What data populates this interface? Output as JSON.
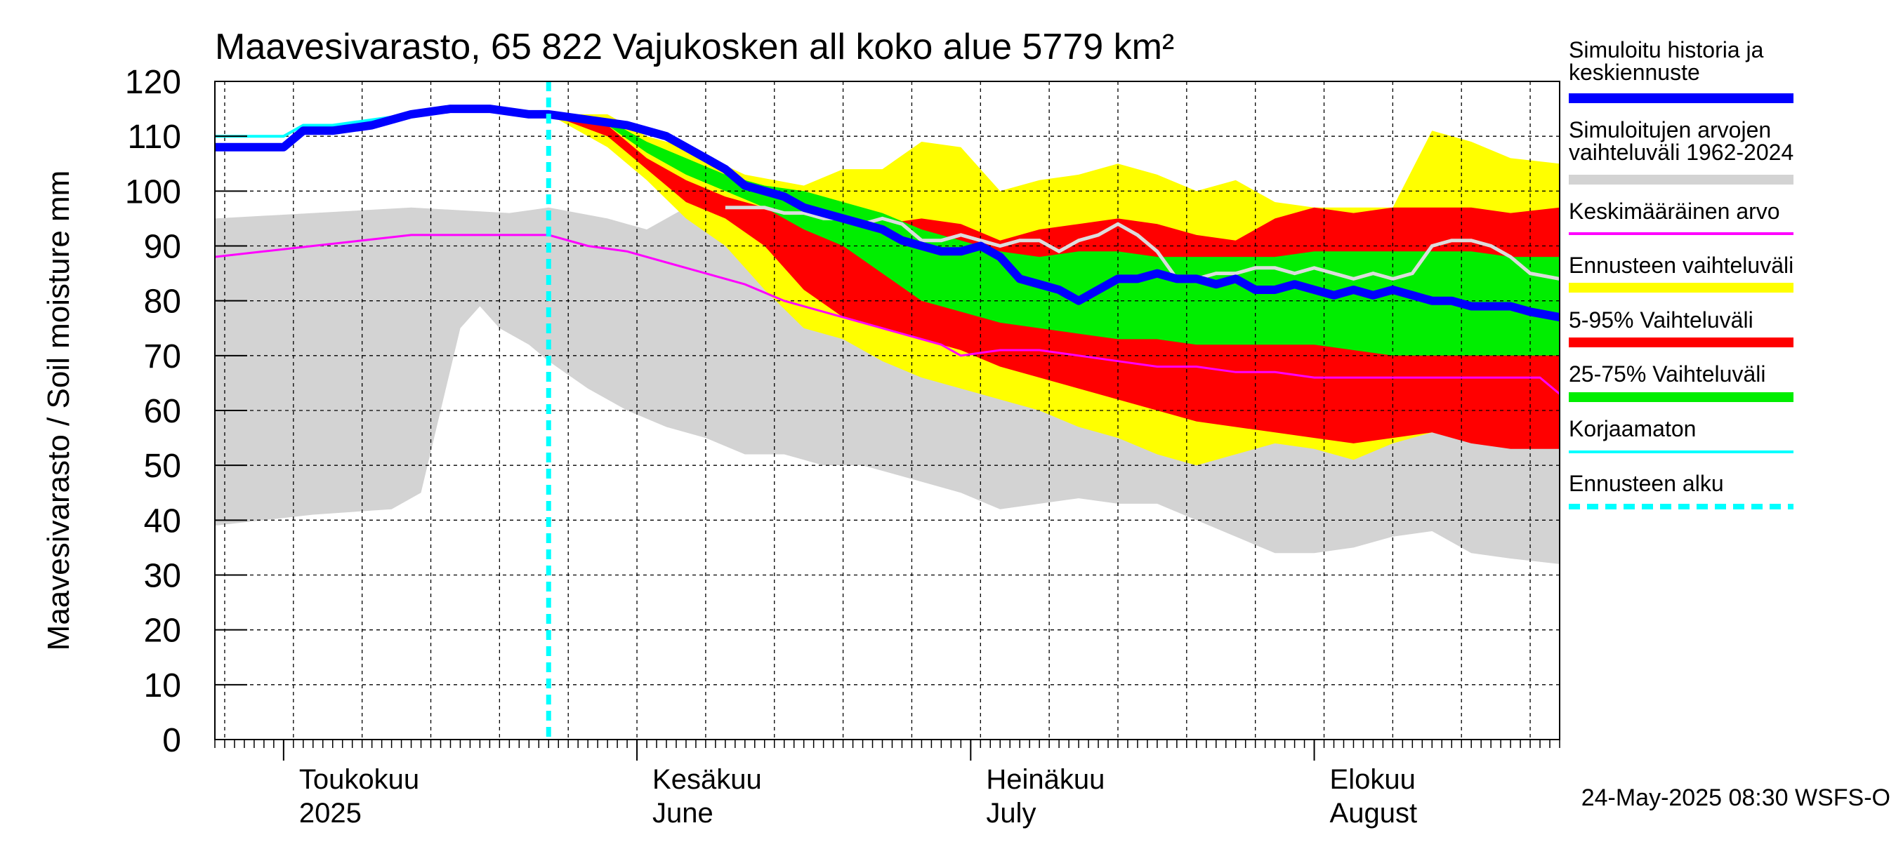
{
  "chart_data": {
    "type": "area",
    "title": "Maavesivarasto, 65 822 Vajukosken all koko alue 5779 km²",
    "ylabel": "Maavesivarasto / Soil moisture   mm",
    "ylim": [
      0,
      120
    ],
    "yticks": [
      0,
      10,
      20,
      30,
      40,
      50,
      60,
      70,
      80,
      90,
      100,
      110,
      120
    ],
    "x_domain_days": [
      0,
      137
    ],
    "forecast_start_day": 34,
    "months": [
      {
        "fi": "Toukokuu",
        "en": "2025",
        "day": 7
      },
      {
        "fi": "Kesäkuu",
        "en": "June",
        "day": 43
      },
      {
        "fi": "Heinäkuu",
        "en": "July",
        "day": 77
      },
      {
        "fi": "Elokuu",
        "en": "August",
        "day": 112
      }
    ],
    "month_boundaries": [
      7,
      43,
      77,
      112
    ],
    "week_gridlines": [
      1,
      8,
      15,
      22,
      29,
      36,
      43,
      50,
      57,
      64,
      71,
      78,
      85,
      92,
      99,
      106,
      113,
      120,
      127,
      134
    ],
    "legend": [
      {
        "label": "Simuloitu historia ja keskiennuste",
        "color": "#0000ff",
        "style": "thick"
      },
      {
        "label": "Simuloitujen arvojen vaihteluväli 1962-2024",
        "color": "#d3d3d3",
        "style": "band"
      },
      {
        "label": "Keskimääräinen arvo",
        "color": "#ff00ff",
        "style": "line"
      },
      {
        "label": "Ennusteen vaihteluväli",
        "color": "#ffff00",
        "style": "band"
      },
      {
        "label": "5-95% Vaihteluväli",
        "color": "#ff0000",
        "style": "band"
      },
      {
        "label": "25-75% Vaihteluväli",
        "color": "#00ee00",
        "style": "band"
      },
      {
        "label": "Korjaamaton",
        "color": "#00ffff",
        "style": "line"
      },
      {
        "label": "Ennusteen alku",
        "color": "#00ffff",
        "style": "dashed"
      }
    ],
    "timestamp": "24-May-2025 08:30 WSFS-O",
    "series": {
      "hist_range_upper": [
        [
          0,
          95
        ],
        [
          10,
          96
        ],
        [
          20,
          97
        ],
        [
          30,
          96
        ],
        [
          34,
          97
        ],
        [
          40,
          95
        ],
        [
          44,
          93
        ],
        [
          48,
          97
        ],
        [
          52,
          98
        ],
        [
          60,
          97
        ],
        [
          70,
          95
        ],
        [
          80,
          93
        ],
        [
          90,
          91
        ],
        [
          100,
          89
        ],
        [
          110,
          87
        ],
        [
          120,
          86
        ],
        [
          130,
          85
        ],
        [
          137,
          84
        ]
      ],
      "hist_range_lower": [
        [
          0,
          39
        ],
        [
          5,
          40
        ],
        [
          10,
          41
        ],
        [
          18,
          42
        ],
        [
          21,
          45
        ],
        [
          23,
          60
        ],
        [
          25,
          75
        ],
        [
          27,
          79
        ],
        [
          29,
          75
        ],
        [
          32,
          72
        ],
        [
          34,
          69
        ],
        [
          38,
          64
        ],
        [
          42,
          60
        ],
        [
          46,
          57
        ],
        [
          50,
          55
        ],
        [
          54,
          52
        ],
        [
          58,
          52
        ],
        [
          62,
          50
        ],
        [
          66,
          50
        ],
        [
          70,
          48
        ],
        [
          76,
          45
        ],
        [
          80,
          42
        ],
        [
          84,
          43
        ],
        [
          88,
          44
        ],
        [
          92,
          43
        ],
        [
          96,
          43
        ],
        [
          100,
          40
        ],
        [
          104,
          37
        ],
        [
          108,
          34
        ],
        [
          112,
          34
        ],
        [
          116,
          35
        ],
        [
          120,
          37
        ],
        [
          124,
          38
        ],
        [
          128,
          34
        ],
        [
          132,
          33
        ],
        [
          137,
          32
        ]
      ],
      "forecast_range_upper": [
        [
          34,
          114
        ],
        [
          40,
          114
        ],
        [
          44,
          110
        ],
        [
          48,
          108
        ],
        [
          54,
          103
        ],
        [
          60,
          101
        ],
        [
          64,
          104
        ],
        [
          68,
          104
        ],
        [
          72,
          109
        ],
        [
          76,
          108
        ],
        [
          80,
          100
        ],
        [
          84,
          102
        ],
        [
          88,
          103
        ],
        [
          92,
          105
        ],
        [
          96,
          103
        ],
        [
          100,
          100
        ],
        [
          104,
          102
        ],
        [
          108,
          98
        ],
        [
          112,
          97
        ],
        [
          116,
          97
        ],
        [
          120,
          97
        ],
        [
          124,
          111
        ],
        [
          128,
          109
        ],
        [
          132,
          106
        ],
        [
          137,
          105
        ]
      ],
      "forecast_range_lower": [
        [
          34,
          114
        ],
        [
          40,
          108
        ],
        [
          44,
          102
        ],
        [
          48,
          95
        ],
        [
          52,
          90
        ],
        [
          56,
          82
        ],
        [
          60,
          75
        ],
        [
          64,
          73
        ],
        [
          68,
          69
        ],
        [
          72,
          66
        ],
        [
          76,
          64
        ],
        [
          80,
          62
        ],
        [
          84,
          60
        ],
        [
          88,
          57
        ],
        [
          92,
          55
        ],
        [
          96,
          52
        ],
        [
          100,
          50
        ],
        [
          104,
          52
        ],
        [
          108,
          54
        ],
        [
          112,
          53
        ],
        [
          116,
          51
        ],
        [
          120,
          54
        ],
        [
          124,
          56
        ],
        [
          128,
          55
        ],
        [
          132,
          55
        ],
        [
          137,
          56
        ]
      ],
      "p5_95_upper": [
        [
          34,
          114
        ],
        [
          40,
          112
        ],
        [
          44,
          106
        ],
        [
          48,
          102
        ],
        [
          52,
          99
        ],
        [
          56,
          97
        ],
        [
          60,
          95
        ],
        [
          64,
          94
        ],
        [
          68,
          94
        ],
        [
          72,
          95
        ],
        [
          76,
          94
        ],
        [
          80,
          91
        ],
        [
          84,
          93
        ],
        [
          88,
          94
        ],
        [
          92,
          95
        ],
        [
          96,
          94
        ],
        [
          100,
          92
        ],
        [
          104,
          91
        ],
        [
          108,
          95
        ],
        [
          112,
          97
        ],
        [
          116,
          96
        ],
        [
          120,
          97
        ],
        [
          124,
          97
        ],
        [
          128,
          97
        ],
        [
          132,
          96
        ],
        [
          137,
          97
        ]
      ],
      "p5_95_lower": [
        [
          34,
          114
        ],
        [
          40,
          110
        ],
        [
          44,
          104
        ],
        [
          48,
          98
        ],
        [
          52,
          95
        ],
        [
          56,
          90
        ],
        [
          60,
          82
        ],
        [
          64,
          77
        ],
        [
          68,
          75
        ],
        [
          72,
          73
        ],
        [
          76,
          71
        ],
        [
          80,
          68
        ],
        [
          84,
          66
        ],
        [
          88,
          64
        ],
        [
          92,
          62
        ],
        [
          96,
          60
        ],
        [
          100,
          58
        ],
        [
          104,
          57
        ],
        [
          108,
          56
        ],
        [
          112,
          55
        ],
        [
          116,
          54
        ],
        [
          120,
          55
        ],
        [
          124,
          56
        ],
        [
          128,
          54
        ],
        [
          132,
          53
        ],
        [
          137,
          53
        ]
      ],
      "p25_75_upper": [
        [
          34,
          114
        ],
        [
          40,
          113
        ],
        [
          44,
          109
        ],
        [
          48,
          106
        ],
        [
          52,
          103
        ],
        [
          56,
          101
        ],
        [
          60,
          100
        ],
        [
          64,
          98
        ],
        [
          68,
          96
        ],
        [
          72,
          93
        ],
        [
          76,
          91
        ],
        [
          80,
          89
        ],
        [
          84,
          88
        ],
        [
          88,
          89
        ],
        [
          92,
          89
        ],
        [
          96,
          88
        ],
        [
          100,
          88
        ],
        [
          104,
          88
        ],
        [
          108,
          88
        ],
        [
          112,
          89
        ],
        [
          116,
          89
        ],
        [
          120,
          89
        ],
        [
          124,
          89
        ],
        [
          128,
          89
        ],
        [
          132,
          88
        ],
        [
          137,
          88
        ]
      ],
      "p25_75_lower": [
        [
          34,
          114
        ],
        [
          40,
          112
        ],
        [
          44,
          107
        ],
        [
          48,
          103
        ],
        [
          52,
          100
        ],
        [
          56,
          97
        ],
        [
          60,
          93
        ],
        [
          64,
          90
        ],
        [
          68,
          85
        ],
        [
          72,
          80
        ],
        [
          76,
          78
        ],
        [
          80,
          76
        ],
        [
          84,
          75
        ],
        [
          88,
          74
        ],
        [
          92,
          73
        ],
        [
          96,
          73
        ],
        [
          100,
          72
        ],
        [
          104,
          72
        ],
        [
          108,
          72
        ],
        [
          112,
          72
        ],
        [
          116,
          71
        ],
        [
          120,
          70
        ],
        [
          124,
          70
        ],
        [
          128,
          70
        ],
        [
          132,
          70
        ],
        [
          137,
          70
        ]
      ],
      "median_forecast": [
        [
          0,
          108
        ],
        [
          7,
          108
        ],
        [
          9,
          111
        ],
        [
          12,
          111
        ],
        [
          16,
          112
        ],
        [
          20,
          114
        ],
        [
          24,
          115
        ],
        [
          28,
          115
        ],
        [
          32,
          114
        ],
        [
          34,
          114
        ],
        [
          38,
          113
        ],
        [
          42,
          112
        ],
        [
          46,
          110
        ],
        [
          50,
          106
        ],
        [
          52,
          104
        ],
        [
          54,
          101
        ],
        [
          56,
          100
        ],
        [
          58,
          99
        ],
        [
          60,
          97
        ],
        [
          62,
          96
        ],
        [
          64,
          95
        ],
        [
          66,
          94
        ],
        [
          68,
          93
        ],
        [
          70,
          91
        ],
        [
          72,
          90
        ],
        [
          74,
          89
        ],
        [
          76,
          89
        ],
        [
          78,
          90
        ],
        [
          80,
          88
        ],
        [
          82,
          84
        ],
        [
          84,
          83
        ],
        [
          86,
          82
        ],
        [
          88,
          80
        ],
        [
          90,
          82
        ],
        [
          92,
          84
        ],
        [
          94,
          84
        ],
        [
          96,
          85
        ],
        [
          98,
          84
        ],
        [
          100,
          84
        ],
        [
          102,
          83
        ],
        [
          104,
          84
        ],
        [
          106,
          82
        ],
        [
          108,
          82
        ],
        [
          110,
          83
        ],
        [
          112,
          82
        ],
        [
          114,
          81
        ],
        [
          116,
          82
        ],
        [
          118,
          81
        ],
        [
          120,
          82
        ],
        [
          122,
          81
        ],
        [
          124,
          80
        ],
        [
          126,
          80
        ],
        [
          128,
          79
        ],
        [
          130,
          79
        ],
        [
          132,
          79
        ],
        [
          134,
          78
        ],
        [
          137,
          77
        ]
      ],
      "mean_value": [
        [
          0,
          88
        ],
        [
          5,
          89
        ],
        [
          10,
          90
        ],
        [
          15,
          91
        ],
        [
          20,
          92
        ],
        [
          25,
          92
        ],
        [
          30,
          92
        ],
        [
          34,
          92
        ],
        [
          38,
          90
        ],
        [
          42,
          89
        ],
        [
          46,
          87
        ],
        [
          50,
          85
        ],
        [
          54,
          83
        ],
        [
          58,
          80
        ],
        [
          62,
          78
        ],
        [
          66,
          76
        ],
        [
          70,
          74
        ],
        [
          74,
          72
        ],
        [
          76,
          70
        ],
        [
          80,
          71
        ],
        [
          84,
          71
        ],
        [
          88,
          70
        ],
        [
          92,
          69
        ],
        [
          96,
          68
        ],
        [
          100,
          68
        ],
        [
          104,
          67
        ],
        [
          108,
          67
        ],
        [
          112,
          66
        ],
        [
          116,
          66
        ],
        [
          120,
          66
        ],
        [
          124,
          66
        ],
        [
          128,
          66
        ],
        [
          132,
          66
        ],
        [
          135,
          66
        ],
        [
          137,
          63
        ]
      ],
      "analog_trace": [
        [
          52,
          97
        ],
        [
          56,
          97
        ],
        [
          58,
          96
        ],
        [
          60,
          96
        ],
        [
          62,
          95
        ],
        [
          64,
          95
        ],
        [
          66,
          94
        ],
        [
          68,
          95
        ],
        [
          70,
          94
        ],
        [
          72,
          91
        ],
        [
          74,
          91
        ],
        [
          76,
          92
        ],
        [
          78,
          91
        ],
        [
          80,
          90
        ],
        [
          82,
          91
        ],
        [
          84,
          91
        ],
        [
          86,
          89
        ],
        [
          88,
          91
        ],
        [
          90,
          92
        ],
        [
          92,
          94
        ],
        [
          94,
          92
        ],
        [
          96,
          89
        ],
        [
          98,
          84
        ],
        [
          100,
          84
        ],
        [
          102,
          85
        ],
        [
          104,
          85
        ],
        [
          106,
          86
        ],
        [
          108,
          86
        ],
        [
          110,
          85
        ],
        [
          112,
          86
        ],
        [
          114,
          85
        ],
        [
          116,
          84
        ],
        [
          118,
          85
        ],
        [
          120,
          84
        ],
        [
          122,
          85
        ],
        [
          124,
          90
        ],
        [
          126,
          91
        ],
        [
          128,
          91
        ],
        [
          130,
          90
        ],
        [
          132,
          88
        ],
        [
          134,
          85
        ],
        [
          137,
          84
        ]
      ],
      "uncorrected": [
        [
          0,
          110
        ],
        [
          7,
          110
        ],
        [
          9,
          112
        ],
        [
          12,
          112
        ],
        [
          16,
          113
        ],
        [
          20,
          114
        ],
        [
          24,
          115
        ],
        [
          28,
          115
        ],
        [
          32,
          114
        ],
        [
          34,
          114
        ]
      ]
    }
  }
}
